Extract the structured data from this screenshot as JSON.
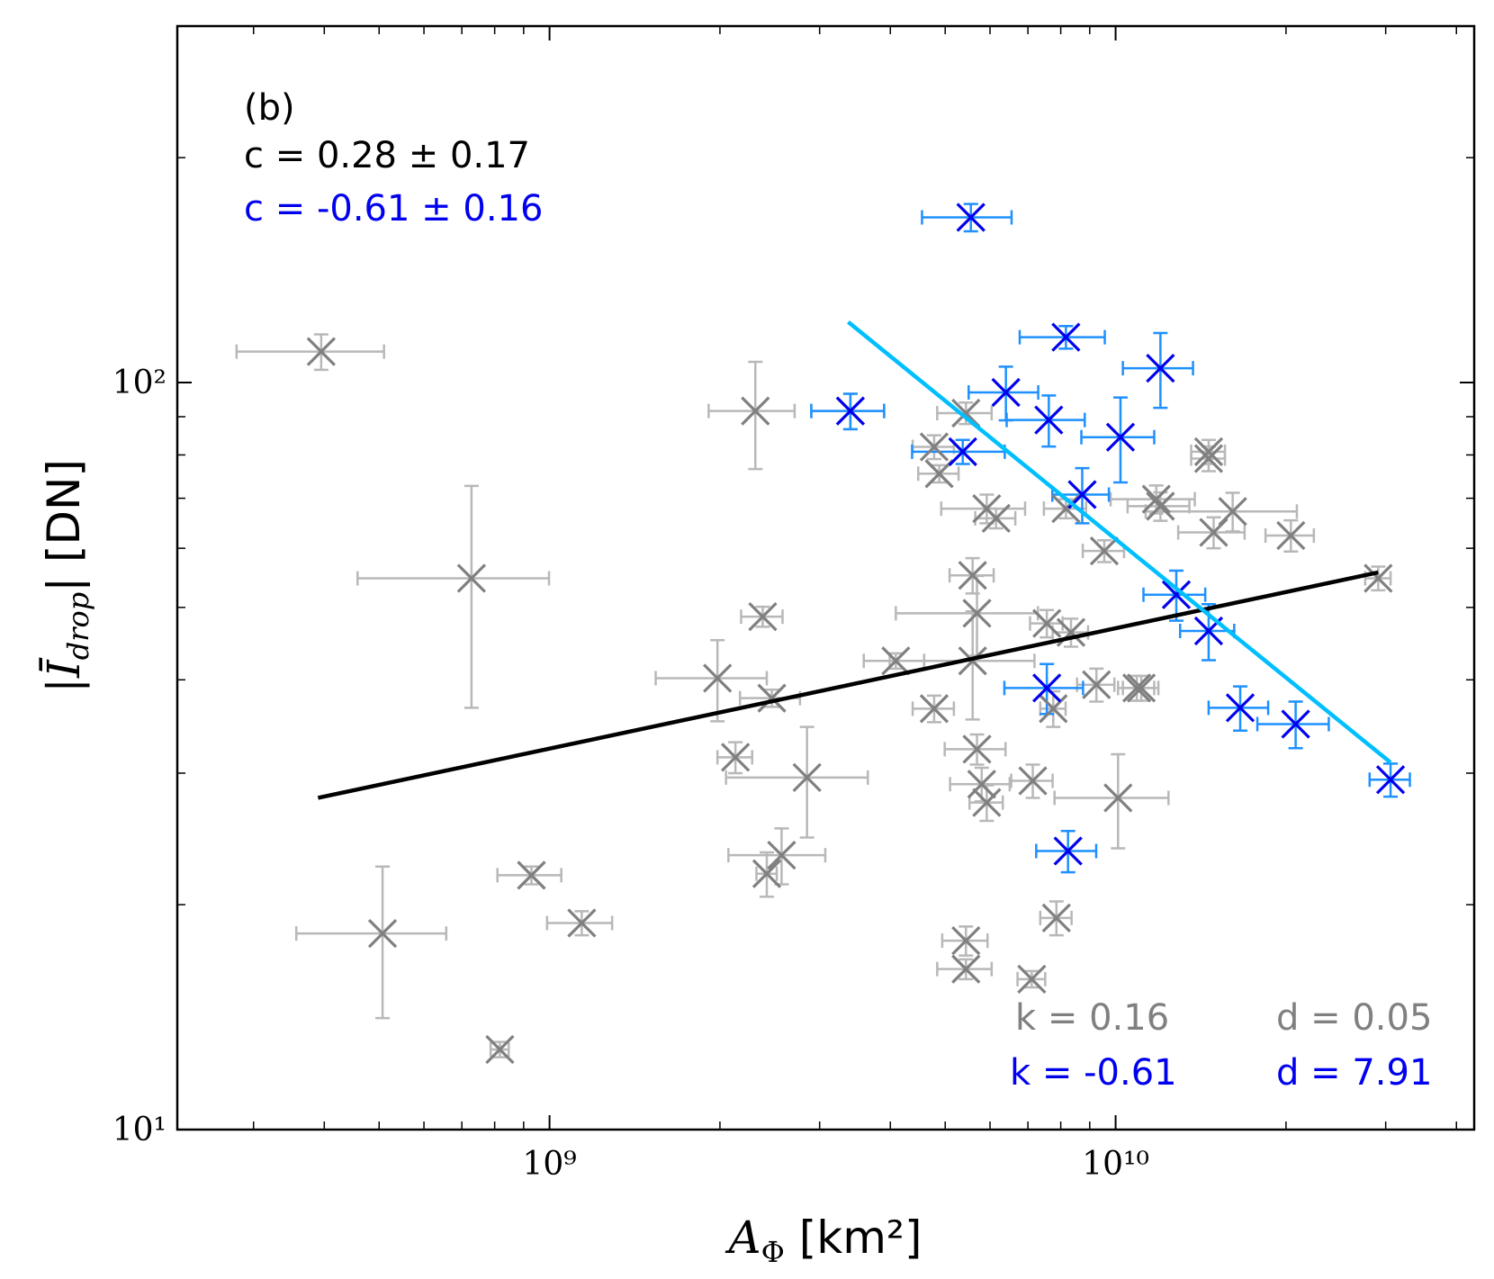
{
  "chart_data": {
    "type": "scatter",
    "xscale": "log",
    "yscale": "log",
    "xlabel": {
      "main": "A",
      "sub": "Φ",
      "rest": " [km²]"
    },
    "ylabel": {
      "main": "|Ī",
      "sub": "drop",
      "rest": "| [DN]"
    },
    "xlim": [
      220000000.0,
      43000000000.0
    ],
    "ylim": [
      10,
      300
    ],
    "xticks": [
      {
        "value": 1000000000.0,
        "label": "10⁹"
      },
      {
        "value": 10000000000.0,
        "label": "10¹⁰"
      }
    ],
    "yticks": [
      {
        "value": 10,
        "label": "10¹"
      },
      {
        "value": 100,
        "label": "10²"
      }
    ],
    "xminorticks": [
      300000000.0,
      400000000.0,
      500000000.0,
      600000000.0,
      700000000.0,
      800000000.0,
      900000000.0,
      2000000000.0,
      3000000000.0,
      4000000000.0,
      5000000000.0,
      6000000000.0,
      7000000000.0,
      8000000000.0,
      9000000000.0,
      20000000000.0,
      30000000000.0,
      40000000000.0
    ],
    "yminorticks": [
      20,
      30,
      40,
      50,
      60,
      70,
      80,
      90,
      200
    ],
    "annotations": [
      {
        "text": "(b)",
        "color": "#000000"
      },
      {
        "text": "c = 0.28 ± 0.17",
        "color": "#000000"
      },
      {
        "text": "c = -0.61 ± 0.16",
        "color": "#0000ee"
      },
      {
        "text": "k = 0.16",
        "color": "#808080"
      },
      {
        "text": "d = 0.05",
        "color": "#808080"
      },
      {
        "text": "k = -0.61",
        "color": "#0000ee"
      },
      {
        "text": "d = 7.91",
        "color": "#0000ee"
      }
    ],
    "series": [
      {
        "color": "#808080",
        "errcolor": "#b8b8b8",
        "x": [
          395000000.0,
          728000000.0,
          507000000.0,
          817000000.0,
          929000000.0,
          1140000000.0,
          2310000000.0,
          1980000000.0,
          2380000000.0,
          2470000000.0,
          2130000000.0,
          2850000000.0,
          2570000000.0,
          2420000000.0,
          4090000000.0,
          4780000000.0,
          4880000000.0,
          4780000000.0,
          5440000000.0,
          5920000000.0,
          6150000000.0,
          5590000000.0,
          5690000000.0,
          5590000000.0,
          5690000000.0,
          5800000000.0,
          5920000000.0,
          5440000000.0,
          5440000000.0,
          7110000000.0,
          7140000000.0,
          7860000000.0,
          7760000000.0,
          7560000000.0,
          8340000000.0,
          8170000000.0,
          9250000000.0,
          9550000000.0,
          10100000000.0,
          10900000000.0,
          11100000000.0,
          11800000000.0,
          12000000000.0,
          14600000000.0,
          14600000000.0,
          14900000000.0,
          16100000000.0,
          20400000000.0,
          29100000000.0,
          3400000000.0
        ],
        "values": [
          110,
          54.7,
          18.3,
          12.8,
          21.9,
          18.9,
          91.6,
          40.2,
          48.6,
          37.8,
          31.5,
          29.6,
          23.3,
          22.0,
          42.4,
          82,
          75.5,
          36.6,
          91,
          67.8,
          65.8,
          55.2,
          49.1,
          42.4,
          32.3,
          29,
          27.4,
          17.9,
          16.4,
          15.9,
          29.3,
          19.2,
          36.6,
          47.6,
          46.3,
          67.8,
          39.4,
          59.5,
          27.8,
          39,
          39,
          69.8,
          68.3,
          80.8,
          79.1,
          63,
          67.2,
          62.4,
          54.7,
          91.6
        ],
        "xerr": [
          115000000.0,
          270000000.0,
          150000000.0,
          30000000.0,
          120000000.0,
          150000000.0,
          400000000.0,
          440000000.0,
          200000000.0,
          300000000.0,
          150000000.0,
          800000000.0,
          500000000.0,
          100000000.0,
          500000000.0,
          400000000.0,
          400000000.0,
          400000000.0,
          600000000.0,
          1000000000.0,
          500000000.0,
          500000000.0,
          1600000000.0,
          1600000000.0,
          700000000.0,
          700000000.0,
          400000000.0,
          500000000.0,
          600000000.0,
          400000000.0,
          600000000.0,
          500000000.0,
          400000000.0,
          500000000.0,
          600000000.0,
          700000000.0,
          700000000.0,
          800000000.0,
          2300000000.0,
          800000000.0,
          800000000.0,
          2000000000.0,
          1500000000.0,
          1000000000.0,
          1000000000.0,
          2000000000.0,
          4800000000.0,
          2000000000.0,
          1500000000.0,
          500000000.0
        ],
        "yerr": [
          6,
          18,
          4.2,
          0.3,
          0.6,
          0.7,
          15,
          5,
          1.5,
          1,
          1.5,
          5,
          2,
          1.5,
          1,
          3,
          2,
          1.5,
          3,
          3,
          2,
          3,
          6,
          7,
          1.5,
          1.5,
          1.5,
          0.8,
          0.5,
          0.4,
          1.5,
          1,
          2,
          2,
          2,
          2,
          2,
          2,
          4,
          1.5,
          1.5,
          3,
          3,
          3,
          3,
          3,
          4,
          3,
          2,
          5
        ]
      },
      {
        "color": "#0000ee",
        "errcolor": "#1e90ff",
        "x": [
          5550000000.0,
          8170000000.0,
          12000000000.0,
          3400000000.0,
          6400000000.0,
          7620000000.0,
          10200000000.0,
          5370000000.0,
          8730000000.0,
          12800000000.0,
          14600000000.0,
          7560000000.0,
          16600000000.0,
          20800000000.0,
          30600000000.0,
          8240000000.0
        ],
        "values": [
          166.4,
          115,
          104.5,
          91.6,
          97,
          89.1,
          84.5,
          80.8,
          70.8,
          52,
          46.5,
          39,
          36.7,
          34.9,
          29.4,
          23.6
        ],
        "xerr": [
          1000000000.0,
          1400000000.0,
          1700000000.0,
          500000000.0,
          900000000.0,
          1200000000.0,
          1500000000.0,
          1000000000.0,
          1000000000.0,
          1600000000.0,
          1600000000.0,
          1200000000.0,
          2000000000.0,
          3000000000.0,
          2500000000.0,
          1000000000.0
        ],
        "yerr": [
          7,
          4,
          12,
          5,
          8,
          7,
          11,
          3,
          6,
          4,
          4,
          3,
          2.5,
          2.5,
          1.5,
          1.5
        ]
      }
    ],
    "fits": [
      {
        "color": "#000000",
        "x": [
          390000000.0,
          29100000000.0
        ],
        "values": [
          27.8,
          55.7
        ]
      },
      {
        "color": "#00bfff",
        "x": [
          3370000000.0,
          30600000000.0
        ],
        "values": [
          120.5,
          31.0
        ]
      }
    ]
  }
}
